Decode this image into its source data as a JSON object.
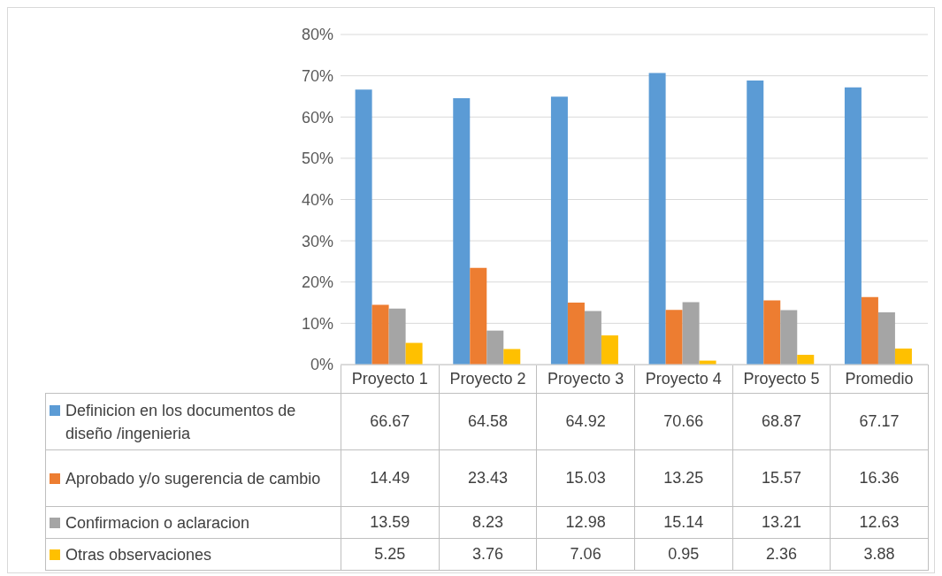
{
  "chart_data": {
    "type": "bar",
    "categories": [
      "Proyecto 1",
      "Proyecto 2",
      "Proyecto 3",
      "Proyecto 4",
      "Proyecto 5",
      "Promedio"
    ],
    "series": [
      {
        "name": "Definicion en los documentos de diseño /ingenieria",
        "color": "#5b9bd5",
        "values": [
          66.67,
          64.58,
          64.92,
          70.66,
          68.87,
          67.17
        ]
      },
      {
        "name": "Aprobado y/o sugerencia de cambio",
        "color": "#ed7d31",
        "values": [
          14.49,
          23.43,
          15.03,
          13.25,
          15.57,
          16.36
        ]
      },
      {
        "name": "Confirmacion o aclaracion",
        "color": "#a5a5a5",
        "values": [
          13.59,
          8.23,
          12.98,
          15.14,
          13.21,
          12.63
        ]
      },
      {
        "name": "Otras observaciones",
        "color": "#ffc000",
        "values": [
          5.25,
          3.76,
          7.06,
          0.95,
          2.36,
          3.88
        ]
      }
    ],
    "ylim": [
      0,
      80
    ],
    "yticks": [
      {
        "value": 0,
        "label": "0%"
      },
      {
        "value": 10,
        "label": "10%"
      },
      {
        "value": 20,
        "label": "20%"
      },
      {
        "value": 30,
        "label": "30%"
      },
      {
        "value": 40,
        "label": "40%"
      },
      {
        "value": 50,
        "label": "50%"
      },
      {
        "value": 60,
        "label": "60%"
      },
      {
        "value": 70,
        "label": "70%"
      },
      {
        "value": 80,
        "label": "80%"
      }
    ],
    "grid": "y",
    "legend": "bottom",
    "data_labels": true
  }
}
